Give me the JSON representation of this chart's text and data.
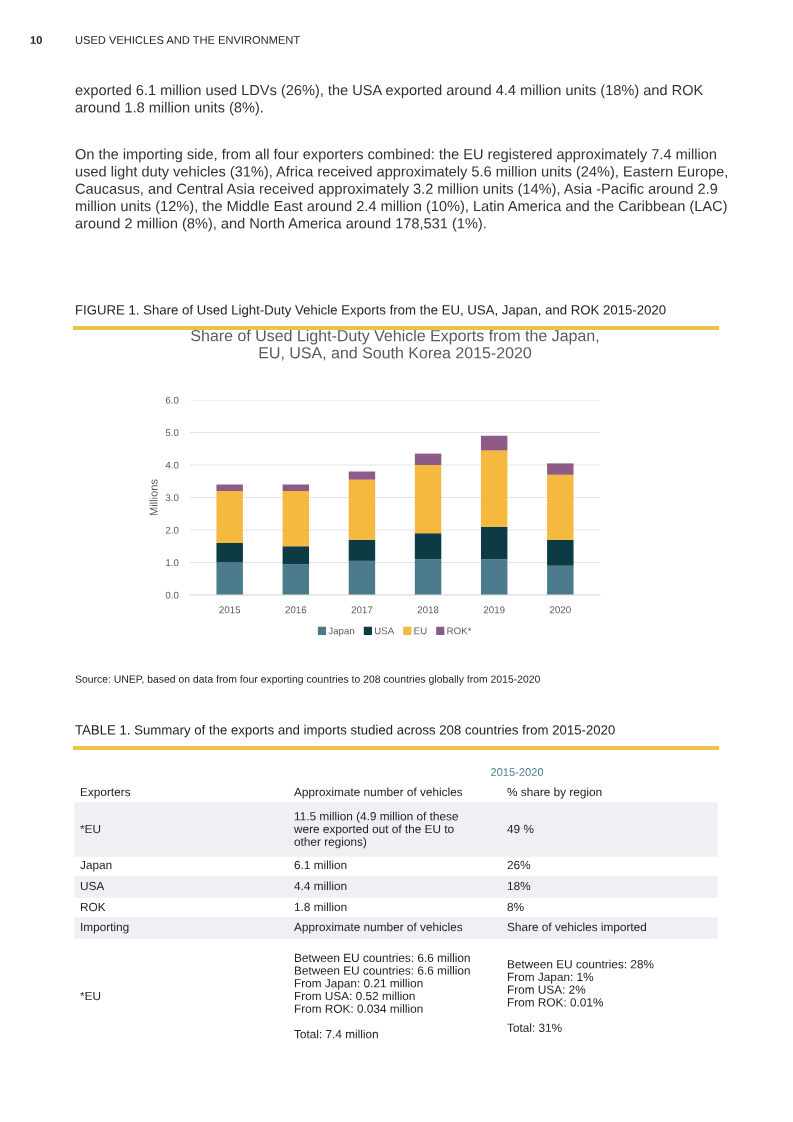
{
  "chart_data": {
    "type": "bar",
    "title": "Share of Used Light-Duty Vehicle Exports from the Japan,\nEU, USA, and South Korea 2015-2020",
    "ylabel": "Millions",
    "categories": [
      "2015",
      "2016",
      "2017",
      "2018",
      "2019",
      "2020"
    ],
    "stacked": true,
    "series": [
      {
        "name": "Japan",
        "color": "#4a7a8c",
        "values": [
          1.0,
          0.95,
          1.05,
          1.1,
          1.1,
          0.9
        ]
      },
      {
        "name": "USA",
        "color": "#0d3b45",
        "values": [
          0.6,
          0.55,
          0.65,
          0.8,
          1.0,
          0.8
        ]
      },
      {
        "name": "EU",
        "color": "#f5b940",
        "values": [
          1.6,
          1.7,
          1.85,
          2.1,
          2.35,
          2.0
        ]
      },
      {
        "name": "ROK*",
        "color": "#8e5a87",
        "values": [
          0.2,
          0.2,
          0.25,
          0.35,
          0.45,
          0.35
        ]
      }
    ],
    "ylim": [
      0,
      6
    ],
    "yticks": [
      {
        "value": 0,
        "label": "0.0"
      },
      {
        "value": 1,
        "label": "1.0"
      },
      {
        "value": 2,
        "label": "2.0"
      },
      {
        "value": 3,
        "label": "3.0"
      },
      {
        "value": 4,
        "label": "4.0"
      },
      {
        "value": 5,
        "label": "5.0"
      },
      {
        "value": 6,
        "label": "6.0"
      }
    ],
    "grid": "y",
    "legend": "bottom",
    "annotations": [
      "10",
      "USED VEHICLES AND THE ENVIRONMENT",
      "exported 6.1 million used LDVs (26%), the USA exported around 4.4 million units (18%) and ROK\naround 1.8 million units (8%).",
      "On the importing side, from all four exporters combined: the EU registered approximately 7.4 million\nused light duty vehicles (31%), Africa received approximately 5.6 million units (24%), Eastern Europe,\nCaucasus, and Central Asia received approximately 3.2 million units (14%), Asia -Pacific around 2.9\nmillion units (12%), the Middle East around 2.4 million (10%), Latin America and the Caribbean (LAC)\naround 2 million (8%), and North America around 178,531 (1%).",
      "FIGURE 1. Share of Used Light-Duty Vehicle Exports from the EU, USA, Japan, and ROK 2015-2020",
      "Source: UNEP, based on data from four exporting countries to 208 countries globally from 2015-2020",
      "TABLE 1. Summary of the exports and imports studied across 208 countries from 2015-2020",
      "2015-2020",
      "Exporters",
      "Approximate number of vehicles",
      "% share by region",
      "*EU",
      "11.5 million (4.9 million of these\nwere exported out of the EU to\nother regions)",
      "49 %",
      "Japan",
      "6.1 million",
      "26%",
      "USA",
      "4.4 million",
      "18%",
      "ROK",
      "1.8 million",
      "8%",
      "Importing",
      "Approximate number of vehicles",
      "Share of vehicles imported",
      "*EU",
      "Between EU countries: 6.6 million\nBetween EU countries: 6.6 million\nFrom Japan: 0.21 million\nFrom USA: 0.52 million\nFrom ROK: 0.034 million\n\nTotal: 7.4 million",
      "Between EU countries: 28%\nFrom Japan: 1%\nFrom USA: 2%\nFrom ROK: 0.01%\n\nTotal: 31%"
    ]
  }
}
